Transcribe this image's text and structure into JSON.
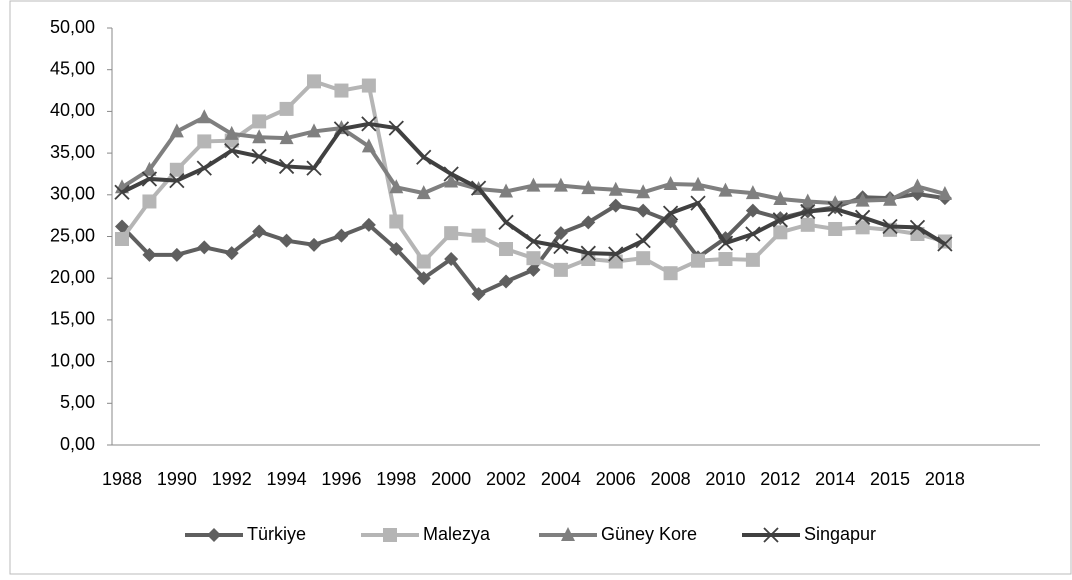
{
  "chart_data": {
    "type": "line",
    "categories": [
      "1988",
      null,
      "1990",
      null,
      "1992",
      null,
      "1994",
      null,
      "1996",
      null,
      "1998",
      null,
      "2000",
      null,
      "2002",
      null,
      "2004",
      null,
      "2006",
      null,
      "2008",
      null,
      "2010",
      null,
      "2012",
      null,
      "2014",
      null,
      "2015",
      null,
      "2018"
    ],
    "series": [
      {
        "name": "Türkiye",
        "color": "#5f5f5f",
        "marker": "diamond",
        "values": [
          26.2,
          22.8,
          22.8,
          23.7,
          23.0,
          25.6,
          24.5,
          24.0,
          25.1,
          26.4,
          23.5,
          20.0,
          22.3,
          18.1,
          19.6,
          21.0,
          25.4,
          26.7,
          28.7,
          28.1,
          26.8,
          22.5,
          24.8,
          28.1,
          27.2,
          28.0,
          28.5,
          29.7,
          29.6,
          30.1,
          29.6
        ]
      },
      {
        "name": "Malezya",
        "color": "#b5b5b5",
        "marker": "square",
        "values": [
          24.7,
          29.2,
          33.0,
          36.4,
          36.5,
          38.8,
          40.3,
          43.6,
          42.5,
          43.1,
          26.8,
          22.0,
          25.4,
          25.1,
          23.5,
          22.4,
          21.0,
          22.3,
          22.0,
          22.4,
          20.6,
          22.1,
          22.3,
          22.2,
          25.5,
          26.4,
          25.9,
          26.1,
          25.8,
          25.3,
          24.4
        ]
      },
      {
        "name": "Güney Kore",
        "color": "#7f7f7f",
        "marker": "triangle",
        "values": [
          30.9,
          33.0,
          37.6,
          39.3,
          37.3,
          36.9,
          36.8,
          37.6,
          38.0,
          35.8,
          30.9,
          30.2,
          31.6,
          30.7,
          30.4,
          31.1,
          31.1,
          30.8,
          30.6,
          30.3,
          31.3,
          31.2,
          30.5,
          30.2,
          29.5,
          29.2,
          29.0,
          29.3,
          29.4,
          31.0,
          30.1
        ]
      },
      {
        "name": "Singapur",
        "color": "#404040",
        "marker": "x",
        "values": [
          30.3,
          31.9,
          31.7,
          33.2,
          35.3,
          34.6,
          33.4,
          33.2,
          37.9,
          38.5,
          38.0,
          34.5,
          32.5,
          30.8,
          26.7,
          24.4,
          23.8,
          23.0,
          22.9,
          24.5,
          27.8,
          29.0,
          24.2,
          25.3,
          27.0,
          28.0,
          28.3,
          27.3,
          26.2,
          26.1,
          24.1
        ]
      }
    ],
    "ylim": [
      0,
      50
    ],
    "yticks": [
      {
        "value": 0,
        "label": "0,00"
      },
      {
        "value": 5,
        "label": "5,00"
      },
      {
        "value": 10,
        "label": "10,00"
      },
      {
        "value": 15,
        "label": "15,00"
      },
      {
        "value": 20,
        "label": "20,00"
      },
      {
        "value": 25,
        "label": "25,00"
      },
      {
        "value": 30,
        "label": "30,00"
      },
      {
        "value": 35,
        "label": "35,00"
      },
      {
        "value": 40,
        "label": "40,00"
      },
      {
        "value": 45,
        "label": "45,00"
      },
      {
        "value": 50,
        "label": "50,00"
      }
    ],
    "legend": "bottom"
  }
}
